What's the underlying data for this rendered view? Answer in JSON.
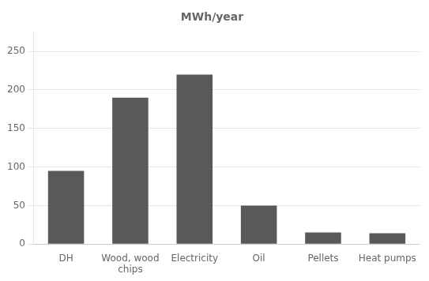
{
  "chart_data": {
    "type": "bar",
    "title": "MWh/year",
    "categories": [
      "DH",
      "Wood, wood\nchips",
      "Electricity",
      "Oil",
      "Pellets",
      "Heat pumps"
    ],
    "values": [
      95,
      190,
      220,
      50,
      15,
      14
    ],
    "color": "#595959",
    "ylim": [
      0,
      275
    ],
    "yticks": [
      0,
      50,
      100,
      150,
      200,
      250
    ],
    "grid": true
  }
}
